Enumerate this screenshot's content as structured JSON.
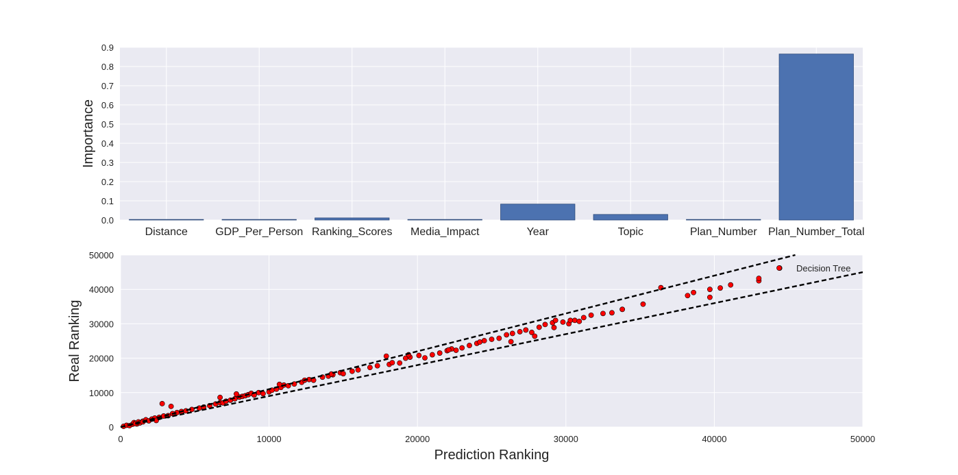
{
  "chart_data": [
    {
      "type": "bar",
      "title": "",
      "xlabel": "",
      "ylabel": "Importance",
      "ylim": [
        0,
        0.9
      ],
      "yticks": [
        "0.0",
        "0.1",
        "0.2",
        "0.3",
        "0.4",
        "0.5",
        "0.6",
        "0.7",
        "0.8",
        "0.9"
      ],
      "grid": true,
      "categories": [
        "Distance",
        "GDP_Per_Person",
        "Ranking_Scores",
        "Media_Impact",
        "Year",
        "Topic",
        "Plan_Number",
        "Plan_Number_Total"
      ],
      "values": [
        0.003,
        0.003,
        0.011,
        0.003,
        0.083,
        0.029,
        0.003,
        0.865
      ],
      "colors": {
        "bar": "#4c72b0",
        "bar_edge": "#2d4a7a",
        "background": "#eaeaf2",
        "grid": "#ffffff"
      }
    },
    {
      "type": "scatter",
      "title": "",
      "xlabel": "Prediction Ranking",
      "ylabel": "Real Ranking",
      "xlim": [
        0,
        50000
      ],
      "ylim": [
        0,
        50000
      ],
      "xticks": [
        "0",
        "10000",
        "20000",
        "30000",
        "40000",
        "50000"
      ],
      "yticks": [
        "0",
        "10000",
        "20000",
        "30000",
        "40000",
        "50000"
      ],
      "grid": true,
      "legend": {
        "position": "top-right",
        "entries": [
          "Decision Tree"
        ]
      },
      "reference_lines": [
        {
          "style": "dashed",
          "slope": 1.1,
          "intercept": 0
        },
        {
          "style": "dashed",
          "slope": 0.9,
          "intercept": 0
        }
      ],
      "series": [
        {
          "name": "Decision Tree",
          "color": "#ff0000",
          "x": [
            200,
            400,
            600,
            800,
            900,
            1000,
            1100,
            1200,
            1300,
            1500,
            1700,
            1900,
            2100,
            2300,
            2600,
            2900,
            3200,
            3500,
            3800,
            4100,
            4400,
            4800,
            5300,
            5600,
            6000,
            6400,
            6700,
            6900,
            7100,
            7400,
            7700,
            8000,
            8200,
            8400,
            8600,
            8800,
            9000,
            9300,
            9600,
            10000,
            10200,
            10500,
            10800,
            11000,
            11300,
            11700,
            12200,
            12700,
            13000,
            13600,
            14000,
            14300,
            14800,
            15000,
            15600,
            16000,
            16800,
            17300,
            18100,
            18300,
            18800,
            19200,
            19500,
            20100,
            20500,
            21000,
            21500,
            22000,
            22300,
            22600,
            23000,
            23500,
            24000,
            24500,
            25000,
            25500,
            26000,
            26400,
            26900,
            27300,
            27700,
            28200,
            28600,
            29100,
            29300,
            29800,
            30200,
            30600,
            31200,
            31700,
            32500,
            33100,
            33800,
            35200,
            36400,
            38200,
            38600,
            39700,
            39700,
            40400,
            41100,
            43000,
            43000,
            44400,
            2800,
            3400,
            1000,
            1500,
            2400,
            6700,
            7800,
            10700,
            12400,
            14200,
            17900,
            19400,
            22100,
            24200,
            26300,
            27900,
            29200,
            30300,
            30900
          ],
          "y": [
            200,
            500,
            400,
            800,
            1300,
            1100,
            900,
            1500,
            1200,
            1700,
            2100,
            1800,
            2300,
            2600,
            2800,
            3200,
            3300,
            3900,
            4200,
            4500,
            4700,
            5100,
            5500,
            5800,
            6200,
            6700,
            7100,
            7000,
            7500,
            7800,
            8200,
            8700,
            8900,
            9100,
            9400,
            9800,
            9300,
            10000,
            9700,
            10200,
            10700,
            11000,
            11500,
            12200,
            12000,
            12500,
            13000,
            13800,
            13600,
            14500,
            14800,
            15200,
            15800,
            15500,
            16200,
            16600,
            17300,
            17800,
            18200,
            18700,
            18600,
            20000,
            20300,
            20800,
            20100,
            21000,
            21500,
            22200,
            22700,
            22300,
            23000,
            23700,
            24300,
            25100,
            25500,
            25800,
            26800,
            27200,
            27700,
            28200,
            27500,
            29000,
            29800,
            30300,
            31000,
            30500,
            30000,
            31000,
            31800,
            32500,
            33000,
            33200,
            34200,
            35700,
            40500,
            38200,
            39100,
            40000,
            37700,
            40400,
            41300,
            42500,
            43200,
            46200,
            6800,
            6000,
            1000,
            1500,
            1900,
            8600,
            9600,
            12400,
            13600,
            15400,
            20600,
            21000,
            22400,
            24700,
            24800,
            26400,
            28900,
            31000,
            30700
          ]
        }
      ],
      "colors": {
        "point": "#ff0000",
        "point_edge": "#000000",
        "background": "#eaeaf2",
        "grid": "#ffffff",
        "line": "#000000"
      }
    }
  ]
}
